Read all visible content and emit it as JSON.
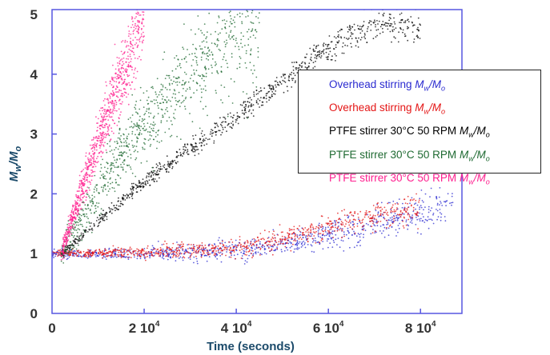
{
  "chart_data": {
    "type": "scatter",
    "xlabel": "Time (seconds)",
    "ylabel_main": "M",
    "ylabel_sub1": "w",
    "ylabel_mid": "/M",
    "ylabel_sub2": "o",
    "xlim": [
      0,
      89000
    ],
    "ylim": [
      0,
      5
    ],
    "grid": false,
    "legend_position": "right",
    "x_ticks": [
      {
        "value": 0,
        "mant": "0",
        "exp": ""
      },
      {
        "value": 20000,
        "mant": "2 10",
        "exp": "4"
      },
      {
        "value": 40000,
        "mant": "4 10",
        "exp": "4"
      },
      {
        "value": 60000,
        "mant": "6 10",
        "exp": "4"
      },
      {
        "value": 80000,
        "mant": "8 10",
        "exp": "4"
      }
    ],
    "y_ticks": [
      0,
      1,
      2,
      3,
      4,
      5
    ],
    "series": [
      {
        "name": "Overhead stirring",
        "suffix": "Mw/Mo",
        "color": "#2b2bd0",
        "trend_x": [
          0,
          20000,
          40000,
          50000,
          60000,
          70000,
          87000
        ],
        "trend_y": [
          1.0,
          1.0,
          1.05,
          1.15,
          1.3,
          1.5,
          1.8
        ],
        "spread": 0.12
      },
      {
        "name": "Overhead stirring",
        "suffix": "Mw/Mo",
        "color": "#e41515",
        "trend_x": [
          0,
          20000,
          40000,
          50000,
          60000,
          70000,
          80000
        ],
        "trend_y": [
          1.0,
          1.02,
          1.1,
          1.25,
          1.45,
          1.62,
          1.75
        ],
        "spread": 0.1
      },
      {
        "name": "PTFE stirrer 30°C 50 RPM",
        "suffix": "Mw/Mo",
        "color": "#000000",
        "trend_x": [
          2000,
          20000,
          40000,
          60000,
          70000,
          80000
        ],
        "trend_y": [
          1.0,
          2.2,
          3.3,
          4.45,
          4.85,
          4.8
        ],
        "spread": 0.12
      },
      {
        "name": "PTFE stirrer 30°C 50 RPM",
        "suffix": "Mw/Mo",
        "color": "#1f6a32",
        "trend_x": [
          2000,
          15000,
          30000,
          45000
        ],
        "trend_y": [
          1.0,
          2.7,
          4.0,
          5.0
        ],
        "spread": 0.45
      },
      {
        "name": "PTFE stirrer 30°C 50 RPM",
        "suffix": "Mw/Mo",
        "color": "#ff1f8f",
        "trend_x": [
          2000,
          10000,
          20000
        ],
        "trend_y": [
          1.0,
          2.9,
          5.0
        ],
        "spread": 0.3
      }
    ]
  }
}
